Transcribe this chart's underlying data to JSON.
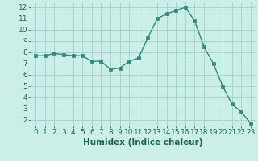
{
  "x": [
    0,
    1,
    2,
    3,
    4,
    5,
    6,
    7,
    8,
    9,
    10,
    11,
    12,
    13,
    14,
    15,
    16,
    17,
    18,
    19,
    20,
    21,
    22,
    23
  ],
  "y": [
    7.7,
    7.7,
    7.9,
    7.8,
    7.7,
    7.7,
    7.2,
    7.2,
    6.5,
    6.6,
    7.2,
    7.5,
    9.3,
    11.0,
    11.4,
    11.7,
    12.0,
    10.8,
    8.5,
    7.0,
    5.0,
    3.4,
    2.7,
    1.7
  ],
  "line_color": "#2e8b74",
  "marker_color": "#2e8b74",
  "bg_color": "#cceee8",
  "grid_color": "#99ccc4",
  "xlabel": "Humidex (Indice chaleur)",
  "xlim": [
    -0.5,
    23.5
  ],
  "ylim": [
    1.5,
    12.5
  ],
  "yticks": [
    2,
    3,
    4,
    5,
    6,
    7,
    8,
    9,
    10,
    11,
    12
  ],
  "xticks": [
    0,
    1,
    2,
    3,
    4,
    5,
    6,
    7,
    8,
    9,
    10,
    11,
    12,
    13,
    14,
    15,
    16,
    17,
    18,
    19,
    20,
    21,
    22,
    23
  ],
  "tick_fontsize": 6.5,
  "label_fontsize": 7.5
}
